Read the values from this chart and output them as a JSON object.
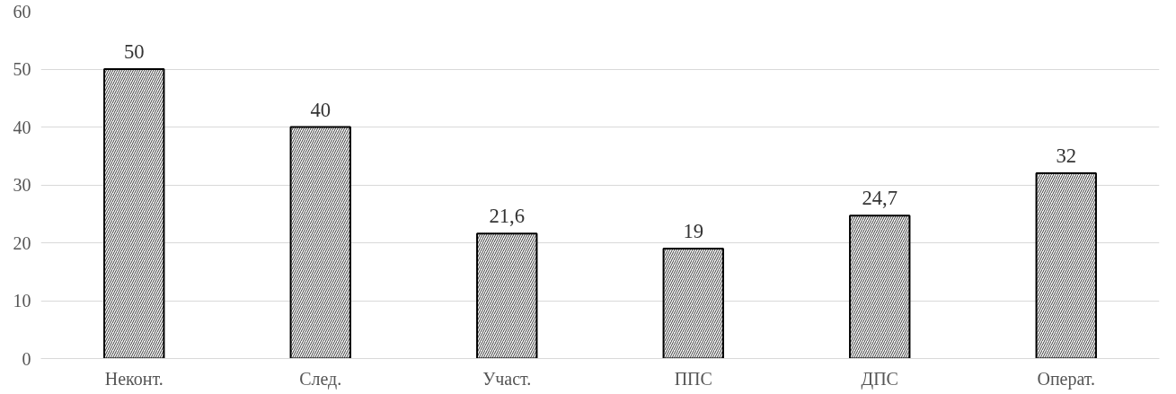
{
  "chart_data": {
    "type": "bar",
    "categories": [
      "Неконт.",
      "След.",
      "Участ.",
      "ППС",
      "ДПС",
      "Операт."
    ],
    "values": [
      50,
      40,
      21.6,
      19,
      24.7,
      32
    ],
    "value_labels": [
      "50",
      "40",
      "21,6",
      "19",
      "24,7",
      "32"
    ],
    "color": "#ffffff",
    "ylim": [
      0,
      60
    ],
    "yticks": [
      0,
      10,
      20,
      30,
      40,
      50,
      60
    ],
    "grid": "y"
  }
}
